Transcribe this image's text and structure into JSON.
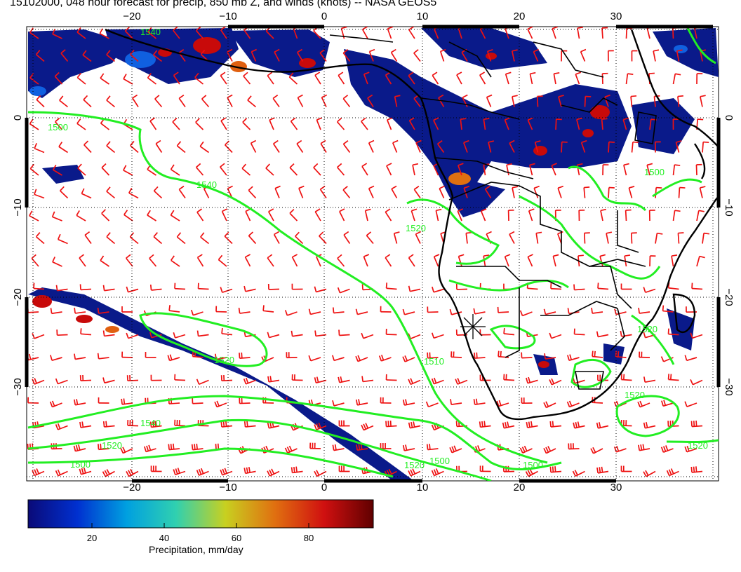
{
  "title": "15102000, 048 hour forecast for precip, 850 mb Z, and winds (knots) -- NASA GEOS5",
  "map": {
    "lon_range": [
      -30,
      40
    ],
    "lat_range": [
      -40,
      10
    ],
    "lon_ticks": [
      "−20",
      "−10",
      "0",
      "10",
      "20",
      "30"
    ],
    "lat_ticks": [
      "0",
      "−10",
      "−20",
      "−30"
    ],
    "gridlines": "dotted",
    "contour_color": "#22ee22",
    "barb_color": "#ee1111",
    "coast_color": "#000000",
    "contour_labels": [
      "1540",
      "1540",
      "1520",
      "1520",
      "1500",
      "1540",
      "1520",
      "1500",
      "1520",
      "1500",
      "1500",
      "1520",
      "1510",
      "1520",
      "1500",
      "1520"
    ],
    "marker_symbol": "station-star"
  },
  "colorbar": {
    "title": "Precipitation, mm/day",
    "ticks": [
      "20",
      "40",
      "60",
      "80"
    ],
    "colors": [
      "#0a0a78",
      "#0030d0",
      "#00a0e0",
      "#30d0b0",
      "#c8d020",
      "#e07010",
      "#d01010",
      "#600000"
    ]
  }
}
